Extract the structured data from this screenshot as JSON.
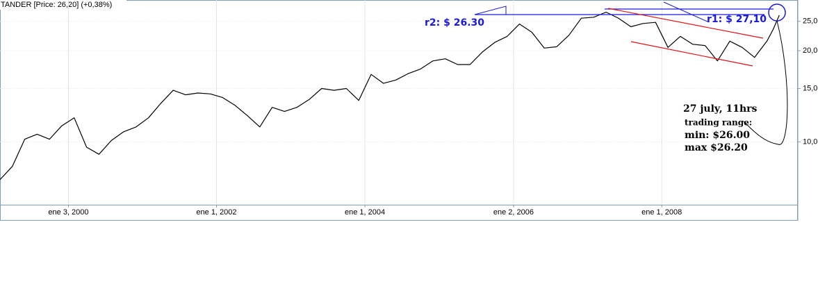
{
  "chart_data": {
    "type": "line",
    "series": [
      {
        "name": "TANDER [Price: 26,20] (+0,38%)",
        "color": "#000000",
        "x": [
          "1999-02",
          "1999-04",
          "1999-06",
          "1999-08",
          "1999-10",
          "1999-12",
          "2000-02",
          "2000-04",
          "2000-06",
          "2000-08",
          "2000-10",
          "2000-12",
          "2001-02",
          "2001-04",
          "2001-06",
          "2001-08",
          "2001-10",
          "2001-12",
          "2002-02",
          "2002-04",
          "2002-06",
          "2002-08",
          "2002-10",
          "2002-12",
          "2003-02",
          "2003-04",
          "2003-06",
          "2003-08",
          "2003-10",
          "2003-12",
          "2004-02",
          "2004-04",
          "2004-06",
          "2004-08",
          "2004-10",
          "2004-12",
          "2005-02",
          "2005-04",
          "2005-06",
          "2005-08",
          "2005-10",
          "2005-12",
          "2006-02",
          "2006-04",
          "2006-06",
          "2006-08",
          "2006-10",
          "2006-12",
          "2007-02",
          "2007-04",
          "2007-06",
          "2007-08",
          "2007-10",
          "2007-12",
          "2008-02",
          "2008-04",
          "2008-06",
          "2008-08",
          "2008-10",
          "2008-12",
          "2009-02",
          "2009-04",
          "2009-06",
          "2009-07",
          "2009-08"
        ],
        "values": [
          7.5,
          8.3,
          10.2,
          10.6,
          10.2,
          11.3,
          12.0,
          9.6,
          9.1,
          10.1,
          10.8,
          11.2,
          12.0,
          13.4,
          14.8,
          14.3,
          14.5,
          14.4,
          14.0,
          13.2,
          12.2,
          11.2,
          13.0,
          12.6,
          13.0,
          13.8,
          15.0,
          14.8,
          15.0,
          13.7,
          16.7,
          15.6,
          16.0,
          16.8,
          17.4,
          18.5,
          18.8,
          18.0,
          18.0,
          19.8,
          21.3,
          22.3,
          24.5,
          23.0,
          20.4,
          20.6,
          22.5,
          25.6,
          25.8,
          26.8,
          25.6,
          24.0,
          24.6,
          24.8,
          20.5,
          22.3,
          21.0,
          20.8,
          18.5,
          21.5,
          20.5,
          19.0,
          21.5,
          23.5,
          26.2
        ]
      }
    ],
    "xlim": [
      "1999-02",
      "2009-11"
    ],
    "xticks": [
      {
        "value": "2000-01-03",
        "label": "ene 3, 2000"
      },
      {
        "value": "2002-01-01",
        "label": "ene 1, 2002"
      },
      {
        "value": "2004-01-01",
        "label": "ene 1, 2004"
      },
      {
        "value": "2006-01-02",
        "label": "ene 2, 2006"
      },
      {
        "value": "2008-01-01",
        "label": "ene 1, 2008"
      }
    ],
    "ylim": [
      6.2,
      29.4
    ],
    "log_scale": true,
    "grid": true,
    "yticks": [
      {
        "value": 10,
        "label": "10,0"
      },
      {
        "value": 15,
        "label": "15,0"
      },
      {
        "value": 20,
        "label": "20,0"
      },
      {
        "value": 25,
        "label": "25,0"
      }
    ],
    "annotations": {
      "r2": "r2: $ 26.30",
      "r1": "r1: $ 27,10",
      "note": [
        "27 july, 11hrs",
        "trading range:",
        "min:  $26.00",
        "max $26.20"
      ]
    }
  }
}
